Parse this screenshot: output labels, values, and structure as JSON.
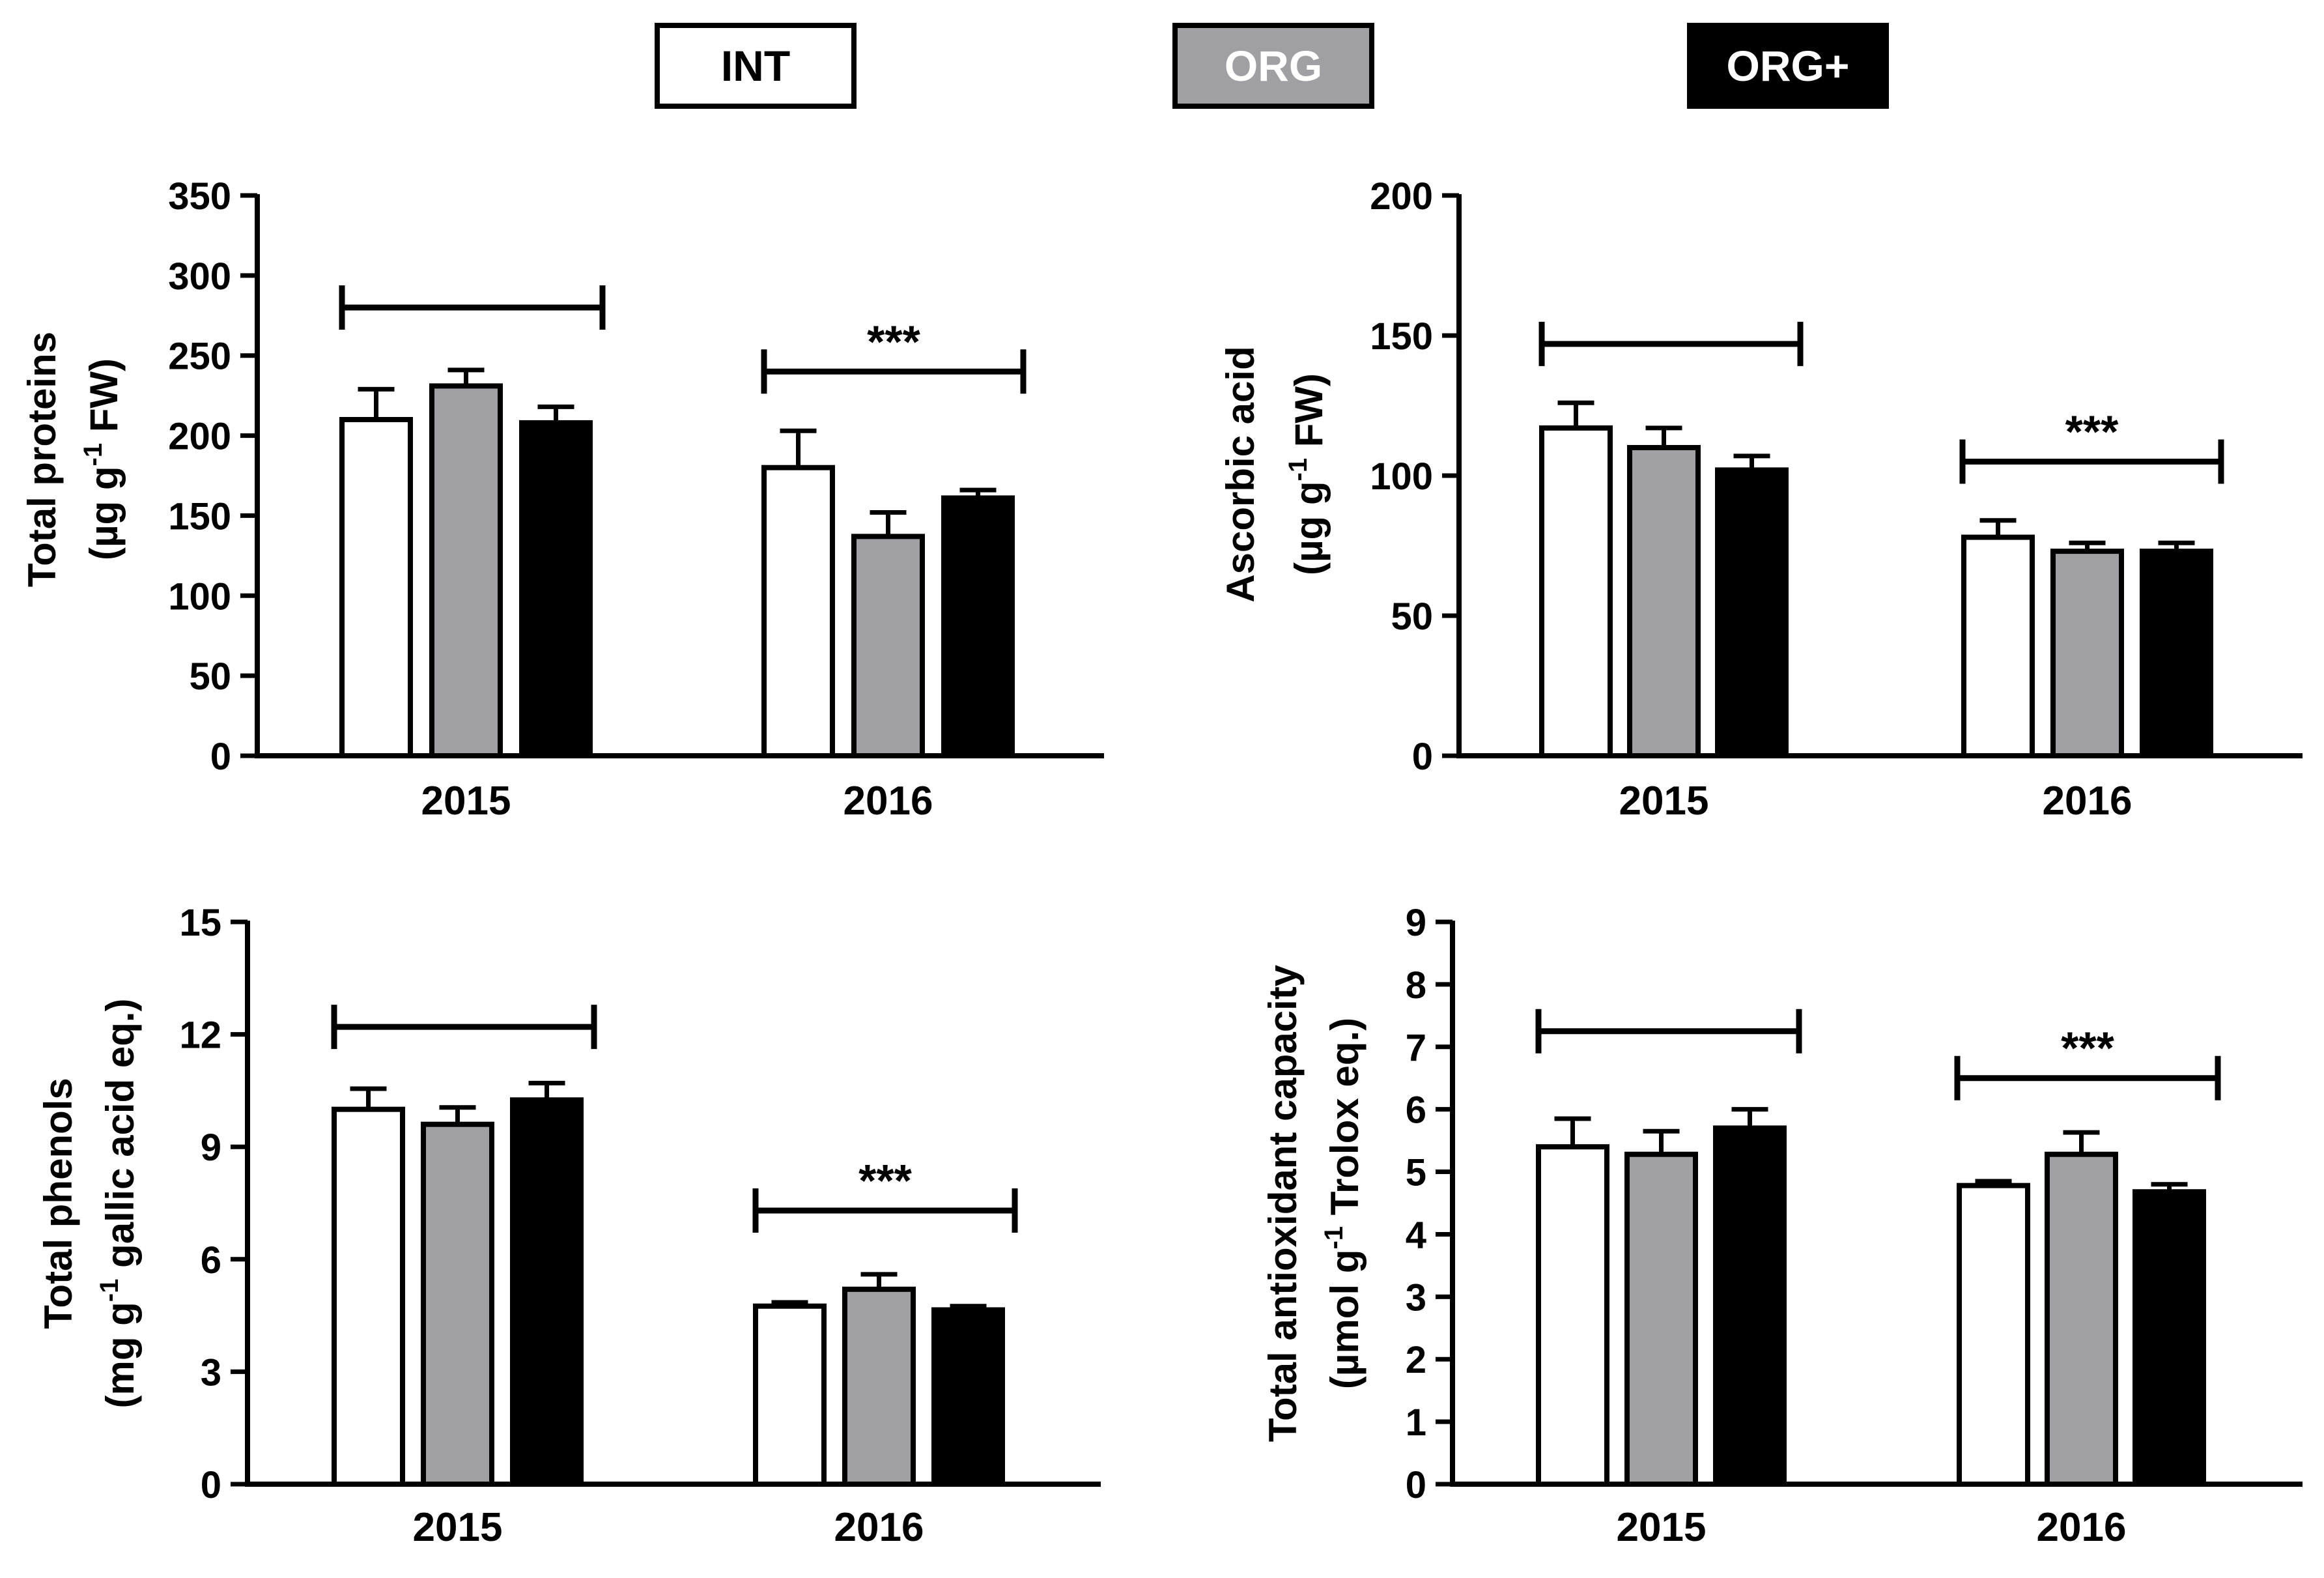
{
  "legend": {
    "items": [
      {
        "label": "INT",
        "fill": "#ffffff",
        "text_color": "#000000"
      },
      {
        "label": "ORG",
        "fill": "#a0a0a4",
        "text_color": "#ffffff"
      },
      {
        "label": "ORG+",
        "fill": "#000000",
        "text_color": "#ffffff"
      }
    ]
  },
  "colors": {
    "int": "#ffffff",
    "org": "#a0a0a4",
    "orgplus": "#000000",
    "axis": "#000000"
  },
  "chart_data": [
    {
      "type": "bar",
      "title": "",
      "ylabel_line1": "Total proteins",
      "ylabel_line2": "(µg g",
      "ylabel_sup": "-1",
      "ylabel_line2_tail": " FW)",
      "categories": [
        "2015",
        "2016"
      ],
      "series": [
        {
          "name": "INT",
          "values": [
            210,
            180
          ],
          "errors": [
            19,
            23
          ]
        },
        {
          "name": "ORG",
          "values": [
            231,
            137
          ],
          "errors": [
            10,
            15
          ]
        },
        {
          "name": "ORG+",
          "values": [
            208,
            161
          ],
          "errors": [
            10,
            5
          ]
        }
      ],
      "ylim": [
        0,
        350
      ],
      "yticks": [
        0,
        50,
        100,
        150,
        200,
        250,
        300,
        350
      ],
      "brackets": [
        {
          "category": "2015",
          "level": 280,
          "label": ""
        },
        {
          "category": "2016",
          "level": 240,
          "label": "***"
        }
      ]
    },
    {
      "type": "bar",
      "title": "",
      "ylabel_line1": "Ascorbic acid",
      "ylabel_line2": "(µg g",
      "ylabel_sup": "-1",
      "ylabel_line2_tail": " FW)",
      "categories": [
        "2015",
        "2016"
      ],
      "series": [
        {
          "name": "INT",
          "values": [
            117,
            78
          ],
          "errors": [
            9,
            6
          ]
        },
        {
          "name": "ORG",
          "values": [
            110,
            73
          ],
          "errors": [
            7,
            3
          ]
        },
        {
          "name": "ORG+",
          "values": [
            102,
            73
          ],
          "errors": [
            5,
            3
          ]
        }
      ],
      "ylim": [
        0,
        200
      ],
      "yticks": [
        0,
        50,
        100,
        150,
        200
      ],
      "brackets": [
        {
          "category": "2015",
          "level": 147,
          "label": ""
        },
        {
          "category": "2016",
          "level": 105,
          "label": "***"
        }
      ]
    },
    {
      "type": "bar",
      "title": "",
      "ylabel_line1": "Total phenols",
      "ylabel_line2": "(mg g",
      "ylabel_sup": "-1",
      "ylabel_line2_tail": " gallic acid eq.)",
      "categories": [
        "2015",
        "2016"
      ],
      "series": [
        {
          "name": "INT",
          "values": [
            10.0,
            4.75
          ],
          "errors": [
            0.55,
            0.1
          ]
        },
        {
          "name": "ORG",
          "values": [
            9.6,
            5.2
          ],
          "errors": [
            0.45,
            0.4
          ]
        },
        {
          "name": "ORG+",
          "values": [
            10.25,
            4.65
          ],
          "errors": [
            0.45,
            0.1
          ]
        }
      ],
      "ylim": [
        0,
        15
      ],
      "yticks": [
        0,
        3,
        6,
        9,
        12,
        15
      ],
      "brackets": [
        {
          "category": "2015",
          "level": 12.2,
          "label": ""
        },
        {
          "category": "2016",
          "level": 7.3,
          "label": "***"
        }
      ]
    },
    {
      "type": "bar",
      "title": "",
      "ylabel_line1": "Total antioxidant capacity",
      "ylabel_line2": "(µmol g",
      "ylabel_sup": "-1",
      "ylabel_line2_tail": " Trolox eq.)",
      "categories": [
        "2015",
        "2016"
      ],
      "series": [
        {
          "name": "INT",
          "values": [
            5.4,
            4.78
          ],
          "errors": [
            0.45,
            0.07
          ]
        },
        {
          "name": "ORG",
          "values": [
            5.28,
            5.28
          ],
          "errors": [
            0.37,
            0.35
          ]
        },
        {
          "name": "ORG+",
          "values": [
            5.7,
            4.68
          ],
          "errors": [
            0.3,
            0.12
          ]
        }
      ],
      "ylim": [
        0,
        9
      ],
      "yticks": [
        0,
        1,
        2,
        3,
        4,
        5,
        6,
        7,
        8,
        9
      ],
      "brackets": [
        {
          "category": "2015",
          "level": 7.25,
          "label": ""
        },
        {
          "category": "2016",
          "level": 6.5,
          "label": "***"
        }
      ]
    }
  ]
}
